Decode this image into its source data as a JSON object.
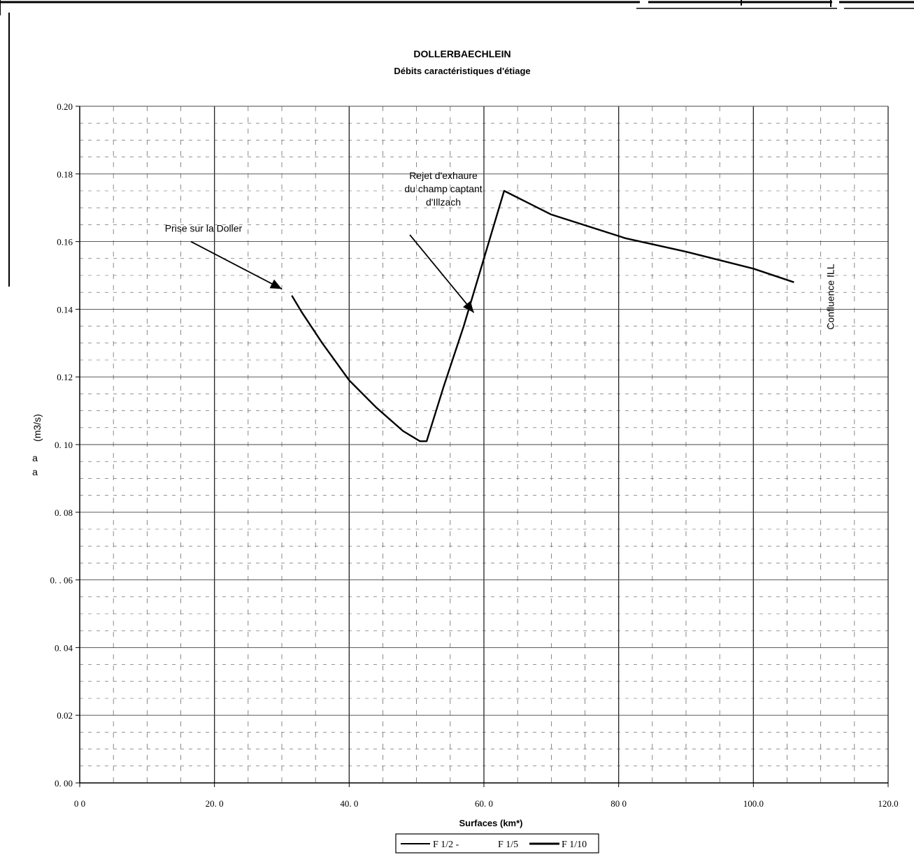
{
  "chart_data": {
    "type": "line",
    "title": "DOLLERBAECHLEIN",
    "subtitle": "Débits caractéristiques d'étiage",
    "xlabel": "Surfaces (km*)",
    "ylabel": "(m3/s)",
    "ylabel_extra": [
      "a",
      "a"
    ],
    "xlim": [
      0,
      120
    ],
    "ylim": [
      0,
      0.2
    ],
    "x_ticks": [
      {
        "value": 0,
        "label": "0 0"
      },
      {
        "value": 20,
        "label": "20. 0"
      },
      {
        "value": 40,
        "label": "40. 0"
      },
      {
        "value": 60,
        "label": "60. 0"
      },
      {
        "value": 80,
        "label": "80 0"
      },
      {
        "value": 100,
        "label": "100.0"
      },
      {
        "value": 120,
        "label": "120.0"
      }
    ],
    "y_ticks": [
      {
        "value": 0.0,
        "label": "0. 00"
      },
      {
        "value": 0.02,
        "label": "0.02"
      },
      {
        "value": 0.04,
        "label": "0. 04"
      },
      {
        "value": 0.06,
        "label": "0. . 06"
      },
      {
        "value": 0.08,
        "label": "0. 08"
      },
      {
        "value": 0.1,
        "label": "0. 10"
      },
      {
        "value": 0.12,
        "label": "0.12"
      },
      {
        "value": 0.14,
        "label": "0.14"
      },
      {
        "value": 0.16,
        "label": "0.16"
      },
      {
        "value": 0.18,
        "label": "0.18"
      },
      {
        "value": 0.2,
        "label": "0.20"
      }
    ],
    "grid": true,
    "legend_position": "bottom-center",
    "series": [
      {
        "name": "F 1/2 -",
        "color": "#000000",
        "points": [
          {
            "x": 31.5,
            "y": 0.144
          },
          {
            "x": 33.0,
            "y": 0.139
          },
          {
            "x": 36.0,
            "y": 0.13
          },
          {
            "x": 40.0,
            "y": 0.119
          },
          {
            "x": 44.0,
            "y": 0.111
          },
          {
            "x": 48.0,
            "y": 0.104
          },
          {
            "x": 50.5,
            "y": 0.101
          },
          {
            "x": 51.5,
            "y": 0.101
          },
          {
            "x": 54.0,
            "y": 0.117
          },
          {
            "x": 57.0,
            "y": 0.135
          },
          {
            "x": 60.0,
            "y": 0.155
          },
          {
            "x": 63.0,
            "y": 0.175
          },
          {
            "x": 70.0,
            "y": 0.168
          },
          {
            "x": 81.0,
            "y": 0.161
          },
          {
            "x": 90.0,
            "y": 0.157
          },
          {
            "x": 100.0,
            "y": 0.152
          },
          {
            "x": 106.0,
            "y": 0.148
          }
        ]
      },
      {
        "name": "F 1/5",
        "color": "#000000",
        "points": []
      },
      {
        "name": "F 1/10",
        "color": "#000000",
        "points": []
      }
    ],
    "annotations": [
      {
        "lines": [
          "Prise sur la Doller"
        ],
        "target": {
          "x": 30.0,
          "y": 0.146
        },
        "from": {
          "x": 16.5,
          "y": 0.16
        }
      },
      {
        "lines": [
          "Rejet d'exhaure",
          "du champ captant",
          "d'Illzach"
        ],
        "target": {
          "x": 58.5,
          "y": 0.139
        },
        "from": {
          "x": 49.0,
          "y": 0.162
        }
      },
      {
        "lines": [
          "Confluence ILL"
        ],
        "vertical": true,
        "x": 108.0,
        "y": 0.148
      }
    ]
  }
}
